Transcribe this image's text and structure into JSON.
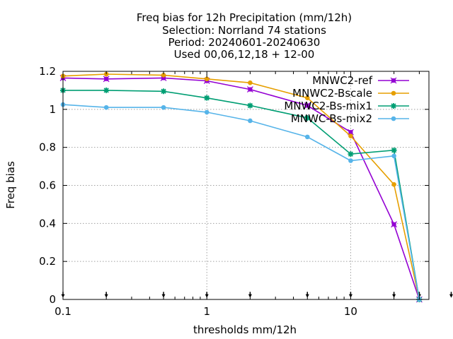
{
  "chart_data": {
    "type": "line",
    "title_lines": [
      "Freq bias  for 12h Precipitation (mm/12h)",
      "Selection: Norrland     74 stations",
      "Period: 20240601-20240630",
      "Used 00,06,12,18 + 12-00"
    ],
    "xlabel": "thresholds mm/12h",
    "ylabel": "Freq bias",
    "x_scale": "log",
    "xlim": [
      0.1,
      35
    ],
    "ylim": [
      0,
      1.2
    ],
    "x_ticks": [
      {
        "value": 0.1,
        "label": "0.1"
      },
      {
        "value": 1,
        "label": "1"
      },
      {
        "value": 10,
        "label": "10"
      }
    ],
    "y_ticks": [
      {
        "value": 0,
        "label": "0"
      },
      {
        "value": 0.2,
        "label": "0.2"
      },
      {
        "value": 0.4,
        "label": "0.4"
      },
      {
        "value": 0.6,
        "label": "0.6"
      },
      {
        "value": 0.8,
        "label": "0.8"
      },
      {
        "value": 1,
        "label": "1"
      },
      {
        "value": 1.2,
        "label": "1.2"
      }
    ],
    "grid": true,
    "legend_position": "top-right",
    "x": [
      0.1,
      0.2,
      0.5,
      1,
      2,
      5,
      10,
      20,
      30
    ],
    "threshold_markers_x": [
      0.1,
      0.2,
      0.5,
      1,
      2,
      5,
      10,
      20,
      30,
      50
    ],
    "series": [
      {
        "name": "MNWC2-ref",
        "color": "#9400d3",
        "marker": "cross-square",
        "values": [
          1.165,
          1.16,
          1.165,
          1.15,
          1.105,
          1.02,
          0.88,
          0.395,
          0.0
        ]
      },
      {
        "name": "MNWC2-Bscale",
        "color": "#e69f00",
        "marker": "circle",
        "values": [
          1.175,
          1.185,
          1.18,
          1.16,
          1.14,
          1.06,
          0.86,
          0.605,
          0.0
        ]
      },
      {
        "name": "MNWC2-Bs-mix1",
        "color": "#009e73",
        "marker": "star",
        "values": [
          1.1,
          1.1,
          1.095,
          1.06,
          1.02,
          0.955,
          0.765,
          0.785,
          0.0
        ]
      },
      {
        "name": "MNWC-Bs-mix2",
        "color": "#56b4e9",
        "marker": "circle",
        "values": [
          1.025,
          1.01,
          1.01,
          0.985,
          0.94,
          0.855,
          0.73,
          0.755,
          0.0
        ]
      }
    ]
  }
}
